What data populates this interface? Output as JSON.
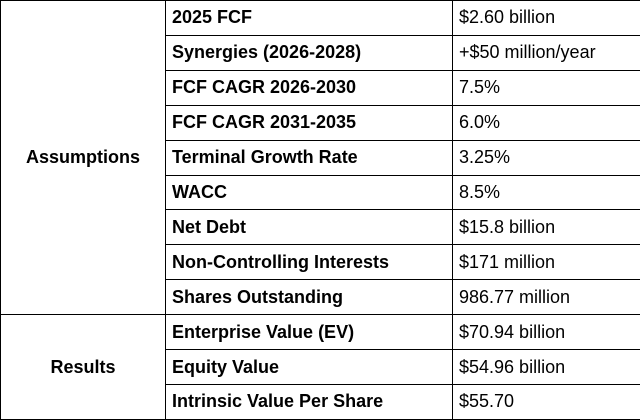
{
  "table": {
    "groups": [
      {
        "label": "Assumptions",
        "rows": [
          [
            "2025 FCF",
            "$2.60 billion"
          ],
          [
            "Synergies (2026-2028)",
            "+$50 million/year"
          ],
          [
            "FCF CAGR 2026-2030",
            "7.5%"
          ],
          [
            "FCF CAGR 2031-2035",
            "6.0%"
          ],
          [
            "Terminal Growth Rate",
            "3.25%"
          ],
          [
            "WACC",
            "8.5%"
          ],
          [
            "Net Debt",
            "$15.8 billion"
          ],
          [
            "Non-Controlling Interests",
            "$171 million"
          ],
          [
            "Shares Outstanding",
            "986.77 million"
          ]
        ]
      },
      {
        "label": "Results",
        "rows": [
          [
            "Enterprise Value (EV)",
            "$70.94 billion"
          ],
          [
            "Equity Value",
            "$54.96 billion"
          ],
          [
            "Intrinsic Value Per Share",
            "$55.70"
          ]
        ]
      }
    ]
  }
}
